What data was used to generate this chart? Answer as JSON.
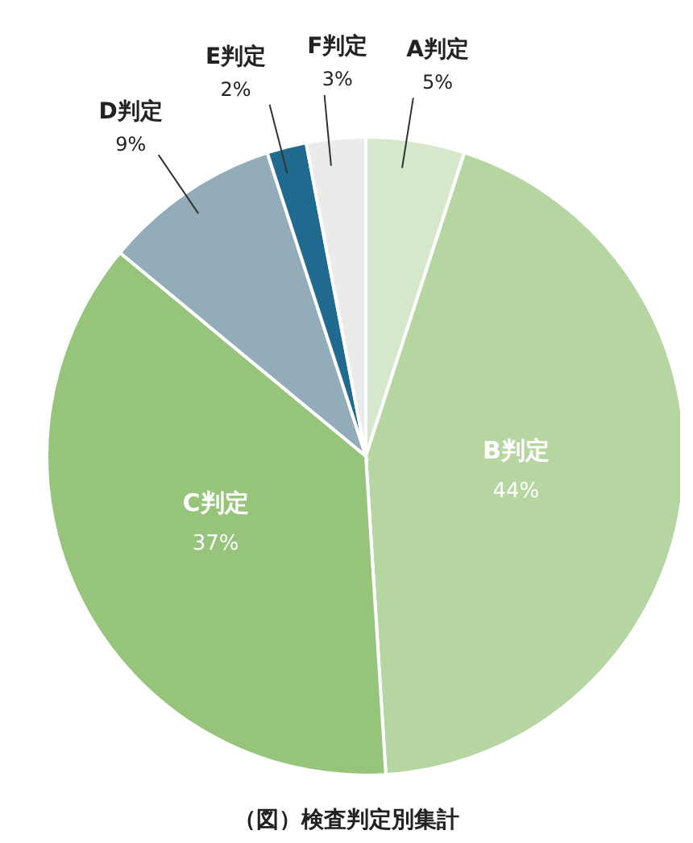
{
  "chart_data": {
    "type": "pie",
    "title": "（図）検査判定別集計",
    "categories": [
      "A判定",
      "B判定",
      "C判定",
      "D判定",
      "E判定",
      "F判定"
    ],
    "values": [
      5,
      44,
      37,
      9,
      2,
      3
    ],
    "value_labels": [
      "5%",
      "44%",
      "37%",
      "9%",
      "2%",
      "3%"
    ],
    "colors": [
      "#d5e8cc",
      "#b5d6a0",
      "#95c47a",
      "#92adb9",
      "#1f6a8e",
      "#ebebeb"
    ]
  }
}
